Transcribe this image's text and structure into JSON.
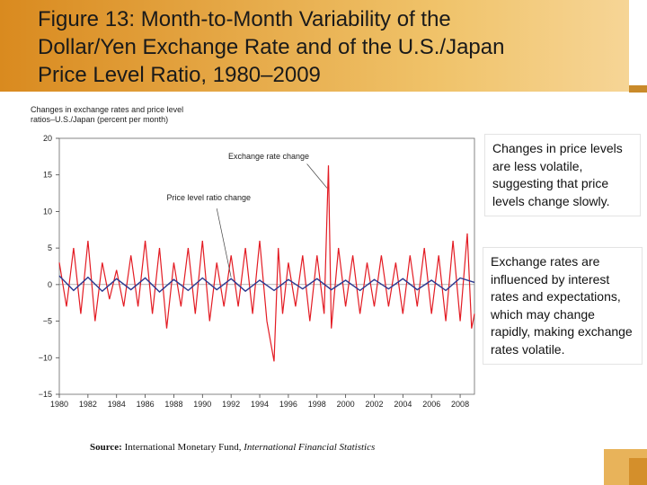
{
  "slide": {
    "title_lines": [
      "Figure 13: Month-to-Month Variability of the",
      "Dollar/Yen Exchange Rate and of the U.S./Japan",
      "Price Level Ratio, 1980–2009"
    ],
    "note_1": "Changes in price levels are less volatile, suggesting that price levels change slowly.",
    "note_2": "Exchange rates are influenced by interest rates and expectations, which may change rapidly, making exchange rates volatile.",
    "source_label": "Source:",
    "source_text": "International Monetary Fund,",
    "source_publication": "International Financial Statistics"
  },
  "chart_data": {
    "type": "line",
    "ylabel_lines": [
      "Changes in exchange rates and price level",
      "ratios–U.S./Japan (percent per month)"
    ],
    "ylim": [
      -15,
      20
    ],
    "xlim": [
      1980,
      2009
    ],
    "y_ticks": [
      20,
      15,
      10,
      5,
      0,
      -5,
      -10,
      -15
    ],
    "y_tick_labels": [
      "20",
      "15",
      "10",
      "5",
      "0",
      "−5",
      "−10",
      "−15"
    ],
    "x_ticks": [
      1980,
      1982,
      1984,
      1986,
      1988,
      1990,
      1992,
      1994,
      1996,
      1998,
      2000,
      2002,
      2004,
      2006,
      2008
    ],
    "x_tick_labels": [
      "1980",
      "1982",
      "1984",
      "1986",
      "1988",
      "1990",
      "1992",
      "1994",
      "1996",
      "1998",
      "2000",
      "2002",
      "2004",
      "2006",
      "2008"
    ],
    "grid": false,
    "series": [
      {
        "name": "Exchange rate change",
        "color": "#e31b23",
        "x": [
          1980.0,
          1980.5,
          1981.0,
          1981.5,
          1982.0,
          1982.5,
          1983.0,
          1983.5,
          1984.0,
          1984.5,
          1985.0,
          1985.5,
          1986.0,
          1986.5,
          1987.0,
          1987.5,
          1988.0,
          1988.5,
          1989.0,
          1989.5,
          1990.0,
          1990.5,
          1991.0,
          1991.5,
          1992.0,
          1992.5,
          1993.0,
          1993.5,
          1994.0,
          1994.5,
          1995.0,
          1995.3,
          1995.6,
          1996.0,
          1996.5,
          1997.0,
          1997.5,
          1998.0,
          1998.5,
          1998.8,
          1999.0,
          1999.5,
          2000.0,
          2000.5,
          2001.0,
          2001.5,
          2002.0,
          2002.5,
          2003.0,
          2003.5,
          2004.0,
          2004.5,
          2005.0,
          2005.5,
          2006.0,
          2006.5,
          2007.0,
          2007.5,
          2008.0,
          2008.5,
          2008.8,
          2009.0
        ],
        "values": [
          3,
          -3,
          5,
          -4,
          6,
          -5,
          3,
          -2,
          2,
          -3,
          4,
          -3,
          6,
          -4,
          5,
          -6,
          3,
          -3,
          5,
          -4,
          6,
          -5,
          3,
          -3,
          4,
          -3,
          5,
          -4,
          6,
          -5,
          -10.5,
          5,
          -4,
          3,
          -3,
          4,
          -5,
          4,
          -4,
          16.3,
          -6,
          5,
          -3,
          4,
          -4,
          3,
          -3,
          4,
          -3,
          3,
          -4,
          4,
          -3,
          5,
          -4,
          4,
          -5,
          6,
          -5,
          7,
          -6,
          -4
        ]
      },
      {
        "name": "Price level ratio change",
        "color": "#2b3990",
        "x": [
          1980.0,
          1981.0,
          1982.0,
          1983.0,
          1984.0,
          1985.0,
          1986.0,
          1987.0,
          1988.0,
          1989.0,
          1990.0,
          1991.0,
          1992.0,
          1993.0,
          1994.0,
          1995.0,
          1996.0,
          1997.0,
          1998.0,
          1999.0,
          2000.0,
          2001.0,
          2002.0,
          2003.0,
          2004.0,
          2005.0,
          2006.0,
          2007.0,
          2008.0,
          2009.0
        ],
        "values": [
          1.2,
          -0.8,
          1.0,
          -0.9,
          0.8,
          -0.7,
          0.9,
          -1.0,
          0.7,
          -0.8,
          0.9,
          -0.7,
          0.8,
          -0.9,
          0.6,
          -0.8,
          0.7,
          -0.6,
          0.8,
          -0.7,
          0.6,
          -0.8,
          0.7,
          -0.6,
          0.8,
          -0.7,
          0.6,
          -0.8,
          0.9,
          0.3
        ]
      }
    ],
    "annotations": [
      {
        "text": "Exchange rate change",
        "target_x": 1998.8,
        "target_y": 16.3
      },
      {
        "text": "Price level ratio change",
        "target_x": 1992.0,
        "target_y": 0.8
      }
    ]
  },
  "colors": {
    "title_gradient_start": "#d98a1f",
    "title_gradient_end": "#f6d596",
    "exchange_line": "#e31b23",
    "price_line": "#2b3990"
  }
}
